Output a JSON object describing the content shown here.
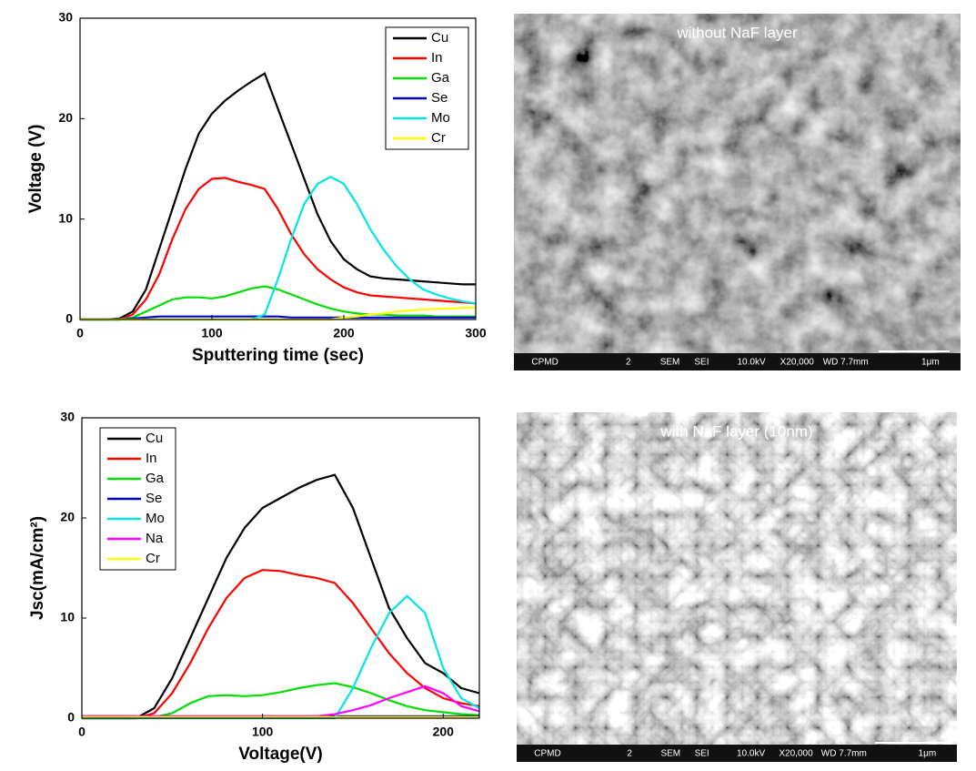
{
  "chart_data": [
    {
      "type": "line",
      "xlabel": "Sputtering time (sec)",
      "ylabel": "Voltage (V)",
      "xlim": [
        0,
        300
      ],
      "ylim": [
        0,
        30
      ],
      "xticks": [
        0,
        100,
        200,
        300
      ],
      "yticks": [
        0,
        10,
        20,
        30
      ],
      "legend": "upper right",
      "x": [
        0,
        10,
        20,
        30,
        40,
        50,
        60,
        70,
        80,
        90,
        100,
        110,
        120,
        130,
        140,
        150,
        160,
        170,
        180,
        190,
        200,
        210,
        220,
        230,
        240,
        250,
        260,
        270,
        280,
        290,
        300
      ],
      "series": [
        {
          "name": "Cu",
          "color": "#000000",
          "values": [
            0,
            0,
            0,
            0.1,
            0.8,
            3,
            7,
            11,
            15,
            18.5,
            20.5,
            21.8,
            22.8,
            23.7,
            24.5,
            21,
            17.5,
            14,
            10.5,
            7.8,
            6,
            5,
            4.3,
            4.1,
            4,
            3.9,
            3.8,
            3.7,
            3.6,
            3.5,
            3.5
          ]
        },
        {
          "name": "In",
          "color": "#ff0000",
          "values": [
            0,
            0,
            0,
            0,
            0.5,
            2,
            4.5,
            8,
            11,
            13,
            14,
            14.1,
            13.7,
            13.4,
            13,
            11,
            8.5,
            6.5,
            5,
            4,
            3.2,
            2.7,
            2.4,
            2.3,
            2.2,
            2.1,
            2,
            1.9,
            1.8,
            1.7,
            1.6
          ]
        },
        {
          "name": "Ga",
          "color": "#00dd00",
          "values": [
            0,
            0,
            0,
            0,
            0.2,
            0.8,
            1.4,
            2,
            2.2,
            2.2,
            2.1,
            2.3,
            2.7,
            3.1,
            3.3,
            3,
            2.5,
            2,
            1.5,
            1.1,
            0.8,
            0.6,
            0.5,
            0.5,
            0.4,
            0.4,
            0.4,
            0.3,
            0.3,
            0.3,
            0.3
          ]
        },
        {
          "name": "Se",
          "color": "#0000cc",
          "values": [
            0,
            0,
            0,
            0,
            0.1,
            0.2,
            0.3,
            0.3,
            0.3,
            0.3,
            0.3,
            0.3,
            0.3,
            0.3,
            0.3,
            0.3,
            0.2,
            0.2,
            0.2,
            0.2,
            0.2,
            0.2,
            0.2,
            0.2,
            0.2,
            0.2,
            0.2,
            0.2,
            0.2,
            0.2,
            0.2
          ]
        },
        {
          "name": "Mo",
          "color": "#00e5e5",
          "values": [
            0,
            0,
            0,
            0,
            0,
            0,
            0,
            0,
            0,
            0,
            0,
            0,
            0,
            0,
            0.5,
            4,
            8,
            11.5,
            13.5,
            14.2,
            13.5,
            11.5,
            9,
            7,
            5.3,
            4,
            3,
            2.5,
            2.1,
            1.8,
            1.6
          ]
        },
        {
          "name": "Cr",
          "color": "#ffff00",
          "values": [
            0,
            0,
            0,
            0,
            0,
            0,
            0,
            0,
            0,
            0,
            0,
            0,
            0,
            0,
            0,
            0,
            0,
            0,
            0,
            0,
            0.2,
            0.3,
            0.5,
            0.6,
            0.8,
            0.9,
            1,
            1.05,
            1.1,
            1.15,
            1.2
          ]
        }
      ]
    },
    {
      "type": "line",
      "xlabel": "Voltage(V)",
      "ylabel": "Jsc(mA/cm²)",
      "xlim": [
        0,
        220
      ],
      "ylim": [
        0,
        30
      ],
      "xticks": [
        0,
        100,
        200
      ],
      "yticks": [
        0,
        10,
        20,
        30
      ],
      "legend": "upper left",
      "x": [
        0,
        10,
        20,
        30,
        40,
        50,
        60,
        70,
        80,
        90,
        100,
        110,
        120,
        130,
        140,
        150,
        160,
        170,
        180,
        190,
        200,
        210,
        220
      ],
      "series": [
        {
          "name": "Cu",
          "color": "#000000",
          "values": [
            0,
            0,
            0,
            0,
            1,
            4,
            8,
            12,
            16,
            19,
            21,
            22,
            23,
            23.8,
            24.3,
            21,
            16,
            11,
            8,
            5.5,
            4.5,
            3,
            2.5
          ]
        },
        {
          "name": "In",
          "color": "#ff0000",
          "values": [
            0,
            0,
            0,
            0,
            0.5,
            2.5,
            5.5,
            9,
            12,
            14,
            14.8,
            14.7,
            14.3,
            14,
            13.5,
            11.5,
            9,
            6.5,
            4.5,
            3,
            2,
            1.5,
            1.2
          ]
        },
        {
          "name": "Ga",
          "color": "#00dd00",
          "values": [
            0,
            0,
            0,
            0,
            0.1,
            0.5,
            1.5,
            2.2,
            2.3,
            2.2,
            2.3,
            2.6,
            3,
            3.3,
            3.5,
            3.1,
            2.5,
            1.8,
            1.2,
            0.8,
            0.6,
            0.4,
            0.3
          ]
        },
        {
          "name": "Se",
          "color": "#0000cc",
          "values": [
            0.2,
            0.2,
            0.2,
            0.2,
            0.2,
            0.2,
            0.2,
            0.2,
            0.2,
            0.2,
            0.2,
            0.2,
            0.2,
            0.2,
            0.2,
            0.2,
            0.2,
            0.2,
            0.2,
            0.2,
            0.2,
            0.2,
            0.2
          ]
        },
        {
          "name": "Mo",
          "color": "#00e5e5",
          "values": [
            0,
            0,
            0,
            0,
            0,
            0,
            0,
            0,
            0,
            0,
            0,
            0,
            0,
            0,
            0,
            3,
            7,
            10.5,
            12.2,
            10.5,
            5,
            2,
            1
          ]
        },
        {
          "name": "Na",
          "color": "#ff00ff",
          "values": [
            0.2,
            0.2,
            0.2,
            0.2,
            0.2,
            0.2,
            0.2,
            0.2,
            0.2,
            0.2,
            0.2,
            0.2,
            0.2,
            0.2,
            0.4,
            0.8,
            1.3,
            2,
            2.6,
            3.2,
            2.5,
            1.2,
            0.7
          ]
        },
        {
          "name": "Cr",
          "color": "#ffff00",
          "values": [
            0.1,
            0.1,
            0.1,
            0.1,
            0.1,
            0.1,
            0.1,
            0.1,
            0.1,
            0.1,
            0.1,
            0.1,
            0.1,
            0.1,
            0.1,
            0.1,
            0.1,
            0.1,
            0.1,
            0.1,
            0.1,
            0.1,
            0.1
          ]
        }
      ]
    }
  ],
  "images": [
    {
      "caption": "without NaF layer",
      "footer": [
        "CPMD",
        "2",
        "SEM",
        "SEI",
        "10.0kV",
        "X20,000",
        "WD 7.7mm",
        "1μm"
      ]
    },
    {
      "caption": "with NaF layer (10nm)",
      "footer": [
        "CPMD",
        "2",
        "SEM",
        "SEI",
        "10.0kV",
        "X20,000",
        "WD 7.7mm",
        "1μm"
      ]
    }
  ]
}
